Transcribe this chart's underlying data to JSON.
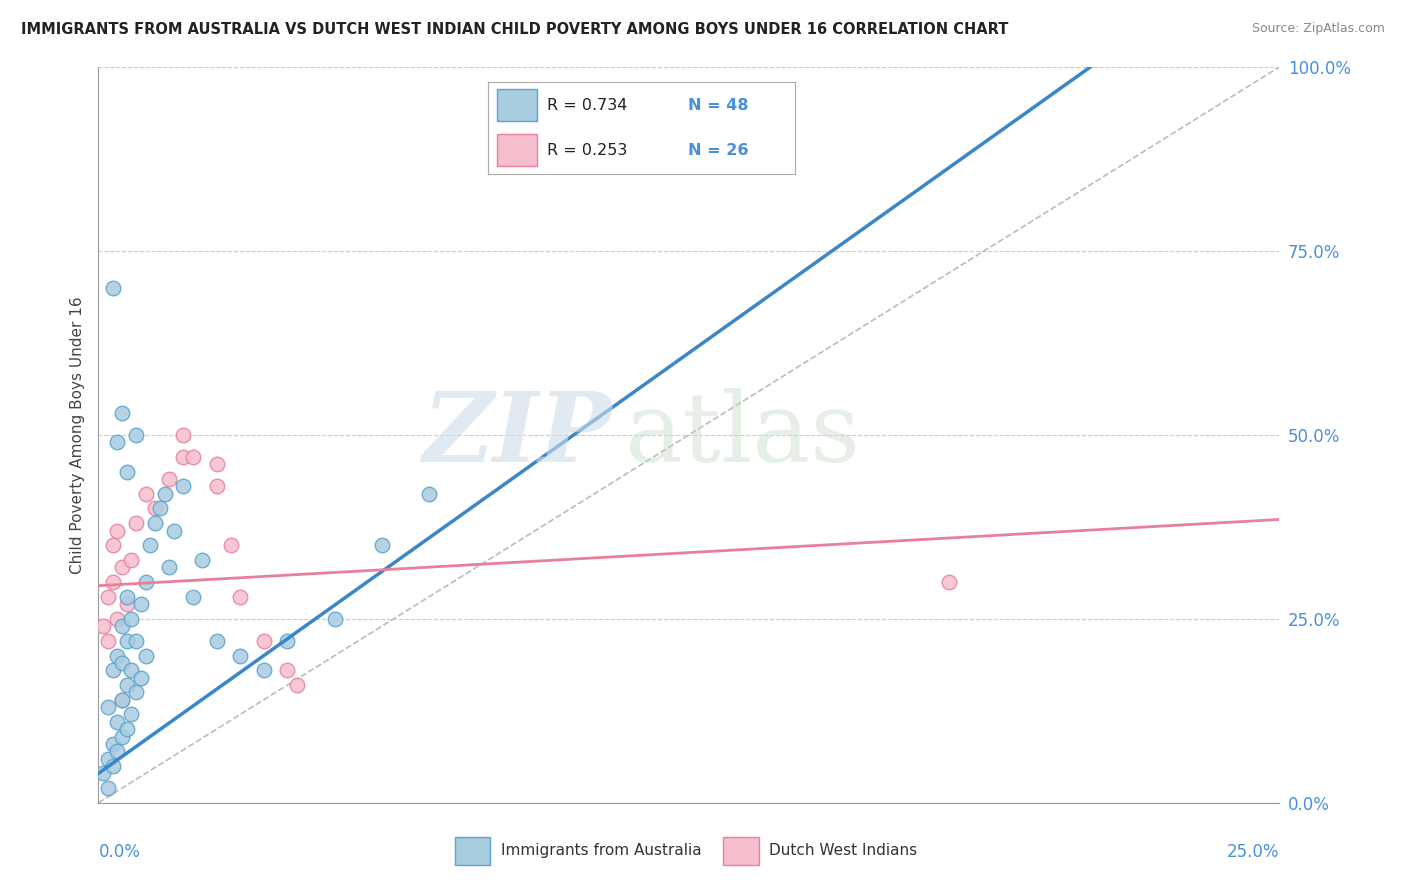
{
  "title": "IMMIGRANTS FROM AUSTRALIA VS DUTCH WEST INDIAN CHILD POVERTY AMONG BOYS UNDER 16 CORRELATION CHART",
  "source": "Source: ZipAtlas.com",
  "ylabel": "Child Poverty Among Boys Under 16",
  "xlim": [
    0.0,
    0.25
  ],
  "ylim": [
    0.0,
    1.0
  ],
  "legend_label1": "Immigrants from Australia",
  "legend_label2": "Dutch West Indians",
  "R1": 0.734,
  "N1": 48,
  "R2": 0.253,
  "N2": 26,
  "color_blue_fill": "#a8cce0",
  "color_blue_edge": "#5ba3cc",
  "color_blue_line": "#3a86c8",
  "color_pink_fill": "#f5bfce",
  "color_pink_edge": "#e8809a",
  "color_pink_line": "#e8809a",
  "ytick_values": [
    0.0,
    0.25,
    0.5,
    0.75,
    1.0
  ],
  "ytick_labels": [
    "0.0%",
    "25.0%",
    "50.0%",
    "75.0%",
    "100.0%"
  ],
  "blue_line_x": [
    0.0,
    0.21
  ],
  "blue_line_y": [
    0.04,
    1.0
  ],
  "pink_line_x": [
    0.0,
    0.25
  ],
  "pink_line_y": [
    0.295,
    0.385
  ],
  "scatter_blue_x": [
    0.001,
    0.002,
    0.002,
    0.003,
    0.003,
    0.003,
    0.004,
    0.004,
    0.004,
    0.005,
    0.005,
    0.005,
    0.005,
    0.006,
    0.006,
    0.006,
    0.006,
    0.007,
    0.007,
    0.007,
    0.008,
    0.008,
    0.009,
    0.009,
    0.01,
    0.01,
    0.011,
    0.012,
    0.013,
    0.014,
    0.015,
    0.016,
    0.018,
    0.02,
    0.022,
    0.025,
    0.03,
    0.035,
    0.04,
    0.05,
    0.06,
    0.07,
    0.005,
    0.003,
    0.004,
    0.006,
    0.008,
    0.002
  ],
  "scatter_blue_y": [
    0.04,
    0.06,
    0.13,
    0.05,
    0.08,
    0.18,
    0.07,
    0.11,
    0.2,
    0.09,
    0.14,
    0.19,
    0.24,
    0.1,
    0.16,
    0.22,
    0.28,
    0.12,
    0.18,
    0.25,
    0.15,
    0.22,
    0.17,
    0.27,
    0.2,
    0.3,
    0.35,
    0.38,
    0.4,
    0.42,
    0.32,
    0.37,
    0.43,
    0.28,
    0.33,
    0.22,
    0.2,
    0.18,
    0.22,
    0.25,
    0.35,
    0.42,
    0.53,
    0.7,
    0.49,
    0.45,
    0.5,
    0.02
  ],
  "scatter_pink_x": [
    0.001,
    0.002,
    0.002,
    0.003,
    0.003,
    0.004,
    0.004,
    0.005,
    0.006,
    0.007,
    0.008,
    0.01,
    0.012,
    0.015,
    0.018,
    0.02,
    0.025,
    0.028,
    0.03,
    0.035,
    0.04,
    0.042,
    0.018,
    0.025,
    0.18,
    0.005
  ],
  "scatter_pink_y": [
    0.24,
    0.22,
    0.28,
    0.3,
    0.35,
    0.25,
    0.37,
    0.32,
    0.27,
    0.33,
    0.38,
    0.42,
    0.4,
    0.44,
    0.47,
    0.47,
    0.43,
    0.35,
    0.28,
    0.22,
    0.18,
    0.16,
    0.5,
    0.46,
    0.3,
    0.14
  ]
}
